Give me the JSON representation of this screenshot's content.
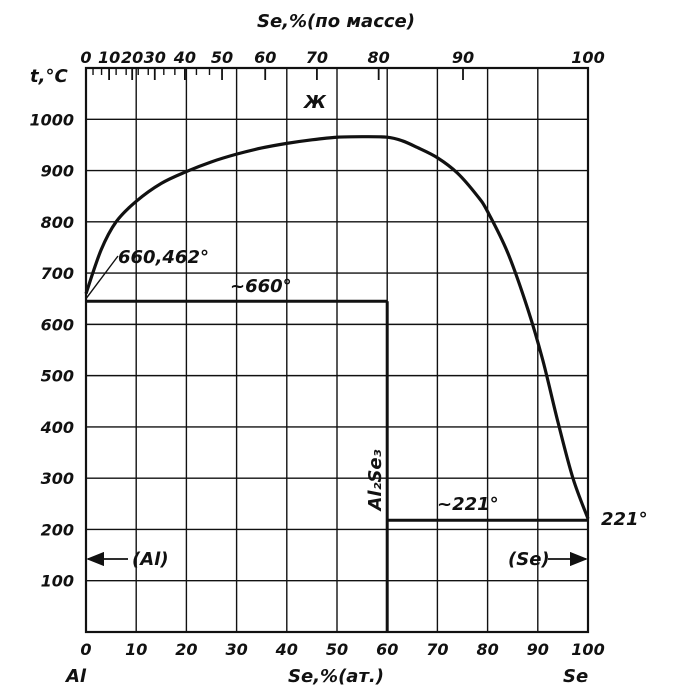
{
  "chart_data": {
    "type": "line",
    "title": "",
    "xlabel": "Se,%(ат.)",
    "ylabel": "t,°C",
    "x2label": "Se,%(по массе)",
    "xlim": [
      0,
      100
    ],
    "ylim": [
      0,
      1100
    ],
    "x_ticks": [
      "0",
      "10",
      "20",
      "30",
      "40",
      "50",
      "60",
      "70",
      "80",
      "90",
      "100"
    ],
    "y_ticks": [
      "100",
      "200",
      "300",
      "400",
      "500",
      "600",
      "700",
      "800",
      "900",
      "1000"
    ],
    "y_tick_values": [
      100,
      200,
      300,
      400,
      500,
      600,
      700,
      800,
      900,
      1000
    ],
    "x2_ticks": [
      {
        "at": 0,
        "label": "0"
      },
      {
        "at": 4.6,
        "label": "10"
      },
      {
        "at": 9.2,
        "label": "20"
      },
      {
        "at": 13.7,
        "label": "30"
      },
      {
        "at": 19.7,
        "label": "40"
      },
      {
        "at": 27.1,
        "label": "50"
      },
      {
        "at": 35.7,
        "label": "60"
      },
      {
        "at": 46.0,
        "label": "70"
      },
      {
        "at": 58.3,
        "label": "80"
      },
      {
        "at": 75.1,
        "label": "90"
      },
      {
        "at": 100,
        "label": "100"
      }
    ],
    "x2_minor": [
      1.4,
      3.1,
      6.0,
      8.0,
      10.4,
      12.4,
      15.5,
      17.7,
      22.0,
      24.6
    ],
    "grid": true,
    "end_labels": {
      "left": "Al",
      "right": "Se"
    },
    "series": [
      {
        "values": [
          {
            "x": 0,
            "y": 660
          },
          {
            "x": 3,
            "y": 745
          },
          {
            "x": 6,
            "y": 800
          },
          {
            "x": 10,
            "y": 840
          },
          {
            "x": 15,
            "y": 875
          },
          {
            "x": 20,
            "y": 898
          },
          {
            "x": 25,
            "y": 917
          },
          {
            "x": 30,
            "y": 932
          },
          {
            "x": 35,
            "y": 944
          },
          {
            "x": 40,
            "y": 953
          },
          {
            "x": 45,
            "y": 960
          },
          {
            "x": 50,
            "y": 965
          },
          {
            "x": 55,
            "y": 966
          },
          {
            "x": 60,
            "y": 965
          },
          {
            "x": 63,
            "y": 958
          },
          {
            "x": 66,
            "y": 945
          },
          {
            "x": 70,
            "y": 925
          },
          {
            "x": 74,
            "y": 895
          },
          {
            "x": 78,
            "y": 850
          },
          {
            "x": 80,
            "y": 820
          },
          {
            "x": 84,
            "y": 740
          },
          {
            "x": 88,
            "y": 630
          },
          {
            "x": 91,
            "y": 530
          },
          {
            "x": 94,
            "y": 410
          },
          {
            "x": 97,
            "y": 300
          },
          {
            "x": 100,
            "y": 221
          }
        ]
      }
    ],
    "horizontal_lines": [
      {
        "y": 645,
        "x_start": 0,
        "x_end": 60
      },
      {
        "y": 218,
        "x_start": 60,
        "x_end": 100
      }
    ],
    "vertical_lines": [
      {
        "x": 60,
        "y_start": 0,
        "y_end": 645
      }
    ],
    "annotations": {
      "liquid": "Ж",
      "eutectic_left_temp": "660,462°",
      "eutectic_left_plateau": "~660°",
      "compound": "Al₂Se₃",
      "eutectic_right_plateau": "~221°",
      "se_melting": "221°",
      "al_phase": "(Al)",
      "se_phase": "(Se)"
    }
  }
}
